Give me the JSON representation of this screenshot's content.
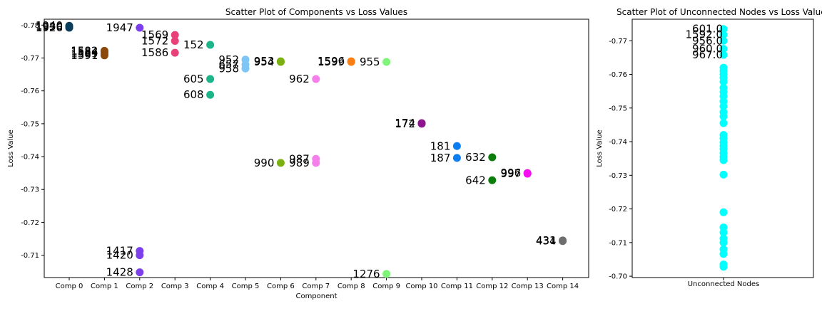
{
  "chart_data": [
    {
      "type": "scatter",
      "title": "Scatter Plot of Components vs Loss Values",
      "xlabel": "Component",
      "ylabel": "Loss Value",
      "x_categories": [
        "Comp 0",
        "Comp 1",
        "Comp 2",
        "Comp 3",
        "Comp 4",
        "Comp 5",
        "Comp 6",
        "Comp 7",
        "Comp 8",
        "Comp 9",
        "Comp 10",
        "Comp 11",
        "Comp 12",
        "Comp 13",
        "Comp 14"
      ],
      "yticks": [
        -0.78,
        -0.77,
        -0.76,
        -0.75,
        -0.74,
        -0.73,
        -0.72,
        -0.71
      ],
      "ylim": [
        -0.7032,
        -0.7818
      ],
      "y_inverted": true,
      "grid": false,
      "points": [
        {
          "x": 0,
          "y": -0.7792,
          "color": "#0b3d5c",
          "label": "1926"
        },
        {
          "x": 0,
          "y": -0.7795,
          "color": "#0b3d5c",
          "label": "1930"
        },
        {
          "x": 0,
          "y": -0.7798,
          "color": "#0b3d5c",
          "label": "1940"
        },
        {
          "x": 1,
          "y": -0.7722,
          "color": "#8b4a0b",
          "label": "1582"
        },
        {
          "x": 1,
          "y": -0.7718,
          "color": "#8b4a0b",
          "label": "1584"
        },
        {
          "x": 1,
          "y": -0.7713,
          "color": "#8b4a0b",
          "label": "1589"
        },
        {
          "x": 1,
          "y": -0.7708,
          "color": "#8b4a0b",
          "label": "1591"
        },
        {
          "x": 2,
          "y": -0.7792,
          "color": "#7b3fee",
          "label": "1947"
        },
        {
          "x": 2,
          "y": -0.7113,
          "color": "#7b3fee",
          "label": "1417"
        },
        {
          "x": 2,
          "y": -0.71,
          "color": "#7b3fee",
          "label": "1420"
        },
        {
          "x": 2,
          "y": -0.7048,
          "color": "#7b3fee",
          "label": "1428"
        },
        {
          "x": 3,
          "y": -0.777,
          "color": "#e8417a",
          "label": "1569"
        },
        {
          "x": 3,
          "y": -0.7752,
          "color": "#e8417a",
          "label": "1572"
        },
        {
          "x": 3,
          "y": -0.7716,
          "color": "#e8417a",
          "label": "1586"
        },
        {
          "x": 4,
          "y": -0.774,
          "color": "#1bb589",
          "label": "152"
        },
        {
          "x": 4,
          "y": -0.7636,
          "color": "#1bb589",
          "label": "605"
        },
        {
          "x": 4,
          "y": -0.7588,
          "color": "#1bb589",
          "label": "608"
        },
        {
          "x": 5,
          "y": -0.7695,
          "color": "#7dc6f5",
          "label": "952"
        },
        {
          "x": 5,
          "y": -0.768,
          "color": "#7dc6f5",
          "label": "657"
        },
        {
          "x": 5,
          "y": -0.7668,
          "color": "#7dc6f5",
          "label": "958"
        },
        {
          "x": 6,
          "y": -0.769,
          "color": "#7ab011",
          "label": "953"
        },
        {
          "x": 6,
          "y": -0.7688,
          "color": "#7ab011",
          "label": "954"
        },
        {
          "x": 6,
          "y": -0.7381,
          "color": "#7ab011",
          "label": "990"
        },
        {
          "x": 7,
          "y": -0.7636,
          "color": "#f57fea",
          "label": "962"
        },
        {
          "x": 7,
          "y": -0.7393,
          "color": "#f57fea",
          "label": "987"
        },
        {
          "x": 7,
          "y": -0.7381,
          "color": "#f57fea",
          "label": "989"
        },
        {
          "x": 8,
          "y": -0.769,
          "color": "#fa7e12",
          "label": "1596"
        },
        {
          "x": 8,
          "y": -0.7688,
          "color": "#fa7e12",
          "label": "1599"
        },
        {
          "x": 9,
          "y": -0.7688,
          "color": "#7ef57a",
          "label": "955"
        },
        {
          "x": 9,
          "y": -0.7043,
          "color": "#7ef57a",
          "label": "1276"
        },
        {
          "x": 10,
          "y": -0.75,
          "color": "#8e168d",
          "label": "172"
        },
        {
          "x": 10,
          "y": -0.7502,
          "color": "#8e168d",
          "label": "174"
        },
        {
          "x": 11,
          "y": -0.7432,
          "color": "#0a7ef0",
          "label": "181"
        },
        {
          "x": 11,
          "y": -0.7396,
          "color": "#0a7ef0",
          "label": "187"
        },
        {
          "x": 12,
          "y": -0.7398,
          "color": "#0a7d0a",
          "label": "632"
        },
        {
          "x": 12,
          "y": -0.7328,
          "color": "#0a7d0a",
          "label": "642"
        },
        {
          "x": 13,
          "y": -0.735,
          "color": "#f50ef0",
          "label": "996"
        },
        {
          "x": 13,
          "y": -0.7348,
          "color": "#f50ef0",
          "label": "997"
        },
        {
          "x": 14,
          "y": -0.7145,
          "color": "#6e6e6e",
          "label": "431"
        },
        {
          "x": 14,
          "y": -0.7143,
          "color": "#6e6e6e",
          "label": "434"
        }
      ]
    },
    {
      "type": "scatter",
      "title": "Scatter Plot of Unconnected Nodes vs Loss Value",
      "xlabel": "Unconnected Nodes",
      "ylabel": "Loss Value",
      "yticks": [
        -0.77,
        -0.76,
        -0.75,
        -0.74,
        -0.73,
        -0.72,
        -0.71,
        -0.7
      ],
      "ylim": [
        -0.6996,
        -0.7764
      ],
      "y_inverted": true,
      "grid": false,
      "color": "#00ffff",
      "values": [
        -0.7735,
        -0.7718,
        -0.77,
        -0.7676,
        -0.7658,
        -0.762,
        -0.761,
        -0.76,
        -0.759,
        -0.7578,
        -0.756,
        -0.7548,
        -0.7535,
        -0.752,
        -0.7505,
        -0.7488,
        -0.7475,
        -0.7455,
        -0.742,
        -0.741,
        -0.7398,
        -0.7388,
        -0.7378,
        -0.7366,
        -0.7355,
        -0.7345,
        -0.7302,
        -0.719,
        -0.7145,
        -0.713,
        -0.7112,
        -0.71,
        -0.708,
        -0.7066,
        -0.7035,
        -0.7028
      ],
      "labels": [
        {
          "text": "601.0",
          "y": -0.7735
        },
        {
          "text": "1592.0",
          "y": -0.7718
        },
        {
          "text": "956.0",
          "y": -0.77
        },
        {
          "text": "960.0",
          "y": -0.7676
        },
        {
          "text": "967.0",
          "y": -0.7658
        }
      ]
    }
  ]
}
